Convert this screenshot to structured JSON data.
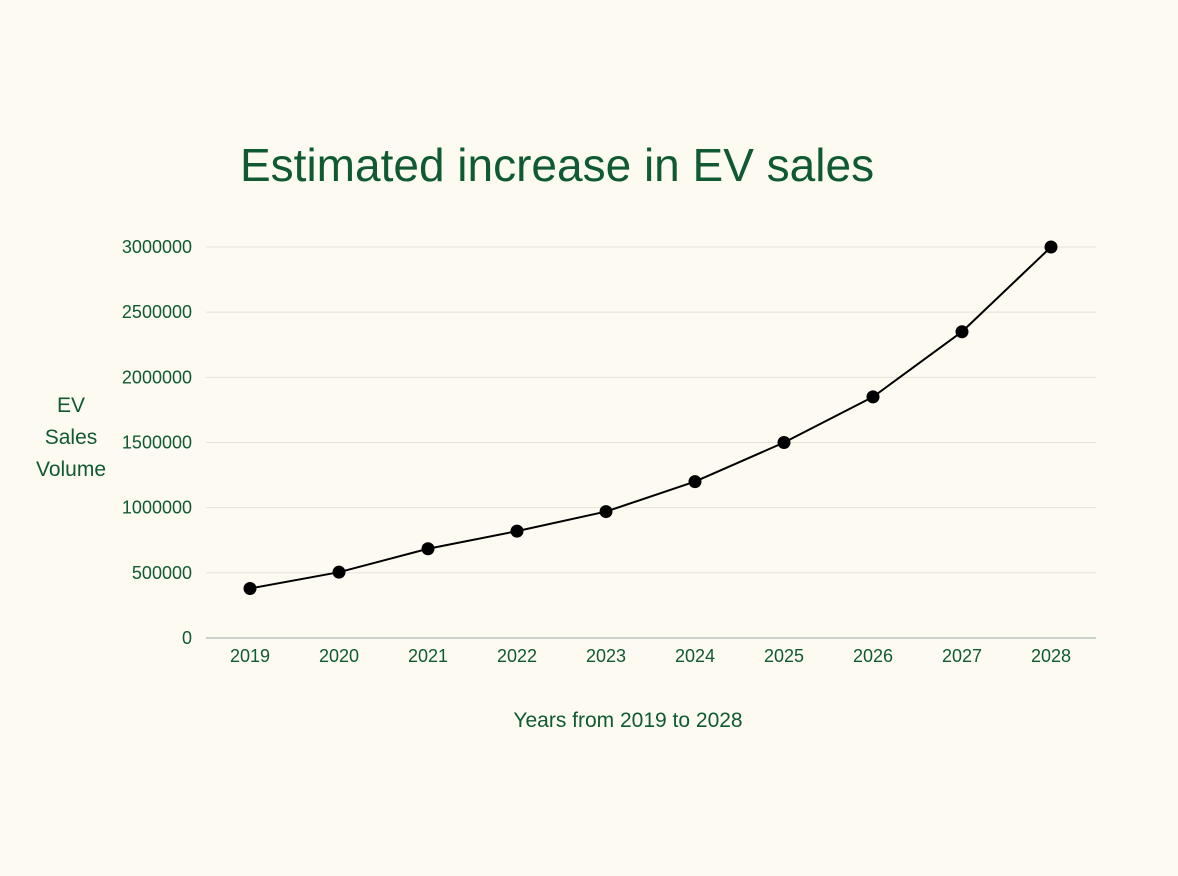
{
  "chart_data": {
    "type": "line",
    "title": "Estimated increase in EV sales",
    "xlabel": "Years from 2019 to 2028",
    "ylabel": [
      "EV",
      "Sales",
      "Volume"
    ],
    "categories": [
      "2019",
      "2020",
      "2021",
      "2022",
      "2023",
      "2024",
      "2025",
      "2026",
      "2027",
      "2028"
    ],
    "series": [
      {
        "values": [
          380000,
          505000,
          685000,
          820000,
          970000,
          1200000,
          1500000,
          1850000,
          2350000,
          3000000
        ]
      }
    ],
    "ylim": [
      0,
      3000000
    ],
    "yticks": [
      "0",
      "500000",
      "1000000",
      "1500000",
      "2000000",
      "2500000",
      "3000000"
    ],
    "ytick_values": [
      0,
      500000,
      1000000,
      1500000,
      2000000,
      2500000,
      3000000
    ],
    "grid": true,
    "colors": {
      "text": "#0f5a32",
      "line": "#000000",
      "marker": "#000000",
      "grid": "#e4e2d8",
      "axis": "#b8c4bc",
      "background": "#fdfaf2"
    }
  }
}
